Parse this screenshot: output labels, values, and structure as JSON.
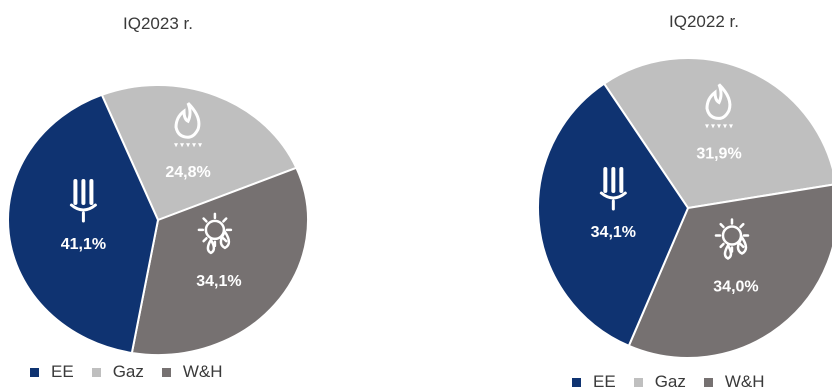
{
  "colors": {
    "EE": "#0f3371",
    "Gaz": "#bfbfbf",
    "W&H": "#767171"
  },
  "icons": {
    "EE": "lightbulb-icon",
    "Gaz": "gas-flame-icon",
    "W&H": "sun-water-drops-icon"
  },
  "chart_data": [
    {
      "type": "pie",
      "title": "IQ2023 r.",
      "categories": [
        "EE",
        "Gaz",
        "W&H"
      ],
      "values": [
        41.1,
        24.8,
        34.1
      ],
      "value_labels": [
        "41,1%",
        "24,8%",
        "34,1%"
      ],
      "legend": [
        "EE",
        "Gaz",
        "W&H"
      ],
      "legend_position": "bottom"
    },
    {
      "type": "pie",
      "title": "IQ2022 r.",
      "categories": [
        "EE",
        "Gaz",
        "W&H"
      ],
      "values": [
        34.1,
        31.9,
        34.0
      ],
      "value_labels": [
        "34,1%",
        "31,9%",
        "34,0%"
      ],
      "legend": [
        "EE",
        "Gaz",
        "W&H"
      ],
      "legend_position": "bottom"
    }
  ]
}
